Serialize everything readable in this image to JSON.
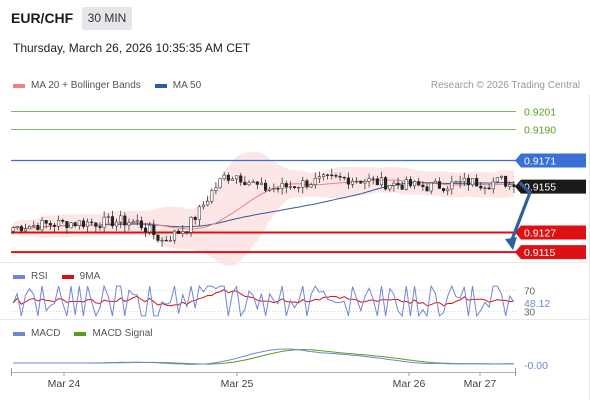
{
  "header": {
    "symbol": "EUR/CHF",
    "interval": "30 MIN",
    "datetime": "Thursday, March 26, 2026 10:35:35 AM CET"
  },
  "credit": "Research © 2026 Trading Central",
  "colors": {
    "ma20": "#f08080",
    "ma50": "#2e5d9e",
    "band_fill": "#fde3e3",
    "resistance": "#3a6fd8",
    "support": "#dd1111",
    "target_green": "#5a9e1e",
    "arrow": "#2f5f9e",
    "rsi": "#6e86d6",
    "rsi_ma": "#dd1111",
    "macd": "#6e86d6",
    "macd_signal": "#5a9e1e"
  },
  "chart_data": [
    {
      "type": "candlestick",
      "panel": "price",
      "legend": [
        {
          "name": "MA 20 + Bollinger Bands",
          "color": "#f08080"
        },
        {
          "name": "MA 50",
          "color": "#2e5d9e"
        }
      ],
      "x_ticks": [
        "Mar 24",
        "Mar 25",
        "Mar 26",
        "Mar 27"
      ],
      "ylim": [
        0.9109,
        0.9211
      ],
      "last_price": 0.9155,
      "levels": [
        {
          "value": 0.9201,
          "label": "0.9201",
          "role": "target",
          "color": "#5a9e1e"
        },
        {
          "value": 0.919,
          "label": "0.9190",
          "role": "target",
          "color": "#5a9e1e"
        },
        {
          "value": 0.9171,
          "label": "0.9171",
          "role": "resistance",
          "color": "#3a6fd8"
        },
        {
          "value": 0.9127,
          "label": "0.9127",
          "role": "support",
          "color": "#dd1111"
        },
        {
          "value": 0.9115,
          "label": "0.9115",
          "role": "support",
          "color": "#dd1111"
        }
      ],
      "close_path": [
        [
          0,
          0.913
        ],
        [
          3,
          0.9131
        ],
        [
          8,
          0.9132
        ],
        [
          14,
          0.9133
        ],
        [
          20,
          0.9133
        ],
        [
          26,
          0.9134
        ],
        [
          30,
          0.9133
        ],
        [
          33,
          0.9128
        ],
        [
          36,
          0.9122
        ],
        [
          39,
          0.9126
        ],
        [
          42,
          0.913
        ],
        [
          45,
          0.914
        ],
        [
          48,
          0.9152
        ],
        [
          51,
          0.9161
        ],
        [
          54,
          0.9162
        ],
        [
          57,
          0.9158
        ],
        [
          60,
          0.9154
        ],
        [
          63,
          0.9154
        ],
        [
          66,
          0.9155
        ],
        [
          70,
          0.9157
        ],
        [
          75,
          0.9159
        ],
        [
          80,
          0.916
        ],
        [
          85,
          0.9159
        ],
        [
          90,
          0.9157
        ],
        [
          95,
          0.9156
        ],
        [
          100,
          0.9155
        ],
        [
          105,
          0.9156
        ],
        [
          110,
          0.9158
        ],
        [
          115,
          0.9157
        ],
        [
          118,
          0.9159
        ],
        [
          121,
          0.9155
        ]
      ],
      "projection": {
        "from": 0.9155,
        "to": 0.9115
      }
    },
    {
      "type": "line",
      "panel": "rsi",
      "series": [
        {
          "name": "RSI",
          "color": "#6e86d6"
        },
        {
          "name": "9MA",
          "color": "#dd1111"
        }
      ],
      "y_ticks": [
        70,
        30
      ],
      "current_value": "48.12"
    },
    {
      "type": "line",
      "panel": "macd",
      "series": [
        {
          "name": "MACD",
          "color": "#6e86d6"
        },
        {
          "name": "MACD Signal",
          "color": "#5a9e1e"
        }
      ],
      "current_value": "-0.00"
    }
  ]
}
